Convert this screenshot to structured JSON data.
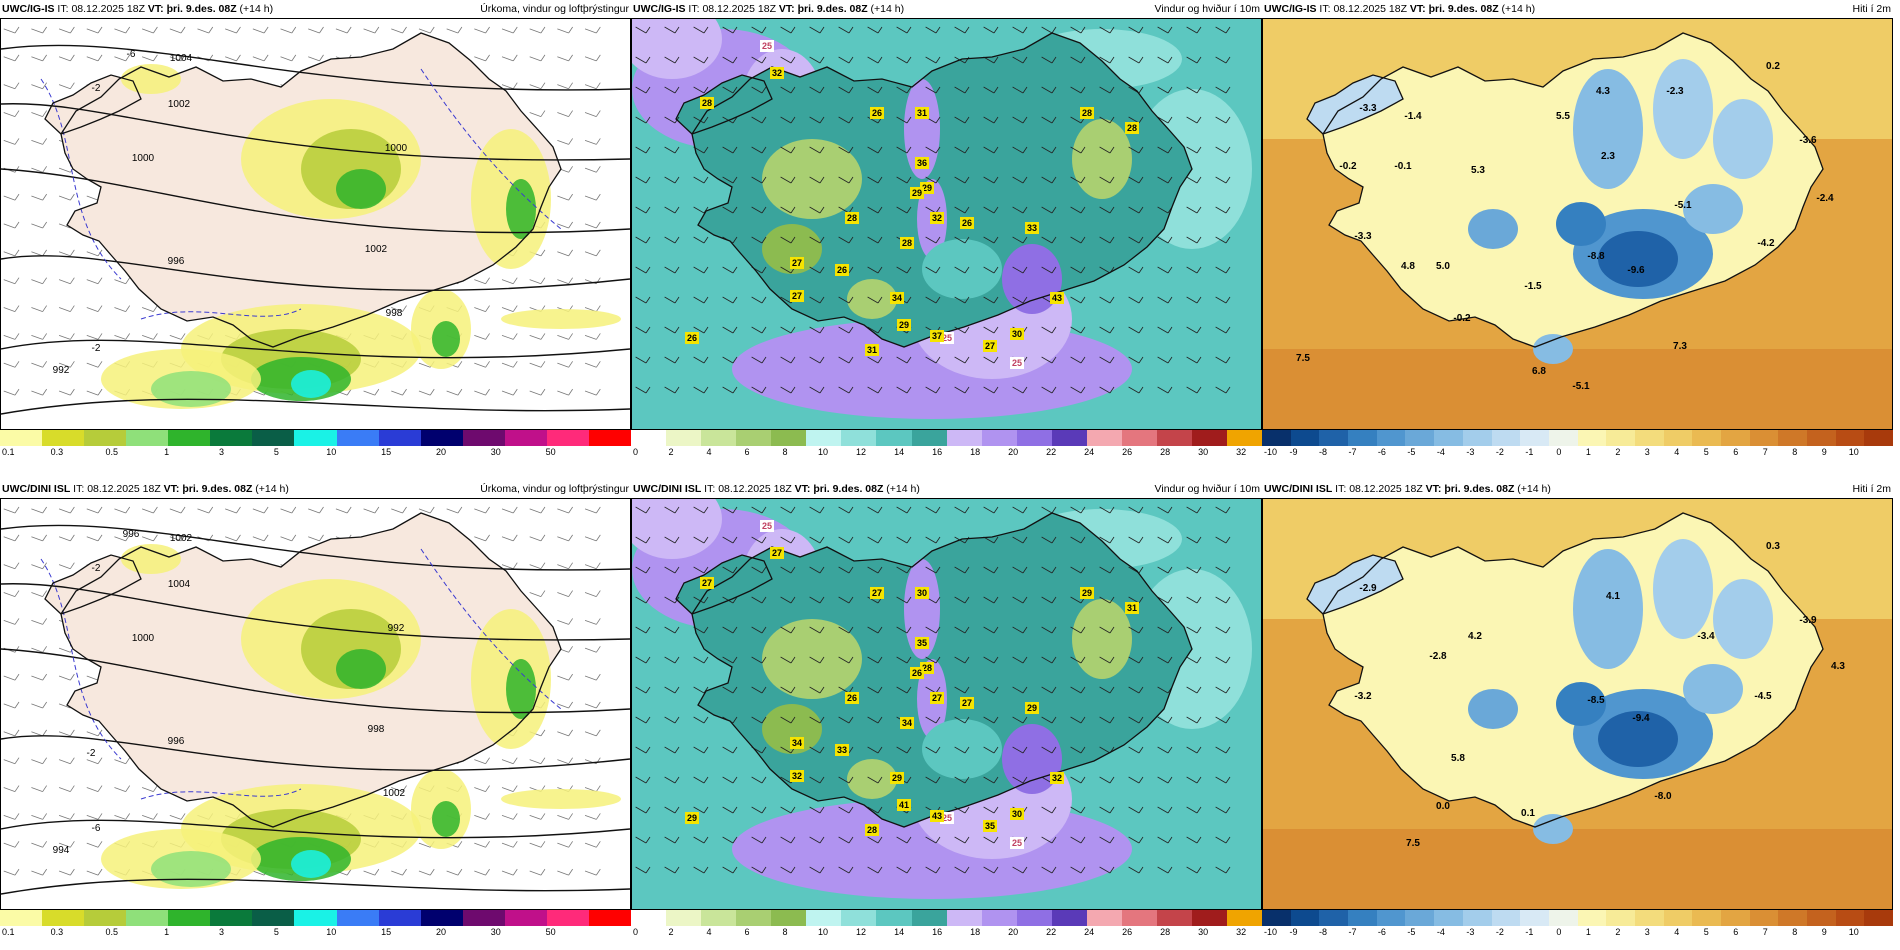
{
  "rows": [
    {
      "model": "UWC/IG-IS",
      "it_label": "IT:",
      "it_value": "08.12.2025 18Z",
      "vt_label": "VT:",
      "vt_value": "þri. 9.des. 08Z",
      "lead": "(+14 h)",
      "panels": [
        {
          "type": "precip",
          "title": "Úrkoma, vindur og loftþrýstingur",
          "labels": [
            "1004",
            "1002",
            "1000",
            "996",
            "992",
            "998",
            "1002",
            "1000",
            "-6",
            "-2",
            "-2"
          ]
        },
        {
          "type": "wind",
          "title": "Vindur og hviður í 10m",
          "labels": [
            "25",
            "32",
            "28",
            "28",
            "26",
            "31",
            "28",
            "28",
            "36",
            "29",
            "26",
            "32",
            "29",
            "33",
            "28",
            "27",
            "26",
            "27",
            "34",
            "25",
            "29",
            "43",
            "37",
            "31",
            "30",
            "27",
            "25",
            "26"
          ]
        },
        {
          "type": "temp",
          "title": "Hiti í 2m",
          "labels": [
            "0.2",
            "-3.3",
            "-1.4",
            "5.5",
            "4.3",
            "-2.3",
            "-0.2",
            "-0.1",
            "5.3",
            "2.3",
            "-3.6",
            "-5.1",
            "-2.4",
            "-3.3",
            "4.8",
            "5.0",
            "-8.8",
            "-4.2",
            "-9.6",
            "-1.5",
            "-0.2",
            "7.5",
            "7.3",
            "6.8",
            "-5.1"
          ]
        }
      ]
    },
    {
      "model": "UWC/DINI ISL",
      "it_label": "IT:",
      "it_value": "08.12.2025 18Z",
      "vt_label": "VT:",
      "vt_value": "þri. 9.des. 08Z",
      "lead": "(+14 h)",
      "panels": [
        {
          "type": "precip",
          "title": "Úrkoma, vindur og loftþrýstingur",
          "labels": [
            "1002",
            "1004",
            "1000",
            "996",
            "994",
            "1002",
            "998",
            "992",
            "996",
            "-6",
            "-2",
            "-2"
          ]
        },
        {
          "type": "wind",
          "title": "Vindur og hviður í 10m",
          "labels": [
            "25",
            "27",
            "27",
            "29",
            "27",
            "30",
            "31",
            "26",
            "35",
            "28",
            "27",
            "27",
            "26",
            "29",
            "34",
            "34",
            "33",
            "32",
            "29",
            "25",
            "41",
            "32",
            "43",
            "28",
            "30",
            "35",
            "25",
            "29"
          ]
        },
        {
          "type": "temp",
          "title": "Hiti í 2m",
          "labels": [
            "0.3",
            "-2.9",
            "4.1",
            "-3.9",
            "-2.8",
            "4.2",
            "-3.4",
            "4.3",
            "-3.2",
            "-8.5",
            "-4.5",
            "5.8",
            "-9.4",
            "0.0",
            "-8.0",
            "0.1",
            "7.5"
          ]
        }
      ]
    }
  ],
  "colorbars": {
    "precip": {
      "labels": [
        "0.1",
        "0.3",
        "0.5",
        "1",
        "3",
        "5",
        "10",
        "15",
        "20",
        "30",
        "50"
      ],
      "colors": [
        "#fbfba6",
        "#d8dc2a",
        "#b6cc3a",
        "#8fe07a",
        "#2fb42c",
        "#0a7a3b",
        "#0a5e47",
        "#1af2e6",
        "#3a7cf6",
        "#2a3cd6",
        "#00006e",
        "#6e0a6e",
        "#c0108a",
        "#ff2a7a",
        "#ff0000"
      ]
    },
    "wind": {
      "labels": [
        "0",
        "2",
        "4",
        "6",
        "8",
        "10",
        "12",
        "14",
        "16",
        "18",
        "20",
        "22",
        "24",
        "26",
        "28",
        "30",
        "32"
      ],
      "colors": [
        "#ffffff",
        "#ecf6c6",
        "#c9e59a",
        "#a9cf72",
        "#8cbb50",
        "#bff4f0",
        "#8fe0da",
        "#5cc7c0",
        "#3aa49c",
        "#cdb8f6",
        "#b093f0",
        "#8f6fe4",
        "#5a3ab8",
        "#f4a8b0",
        "#e4767e",
        "#c4444a",
        "#a01c1c",
        "#f0a400"
      ]
    },
    "temp": {
      "labels": [
        "-10",
        "-9",
        "-8",
        "-7",
        "-6",
        "-5",
        "-4",
        "-3",
        "-2",
        "-1",
        "0",
        "1",
        "2",
        "3",
        "4",
        "5",
        "6",
        "7",
        "8",
        "9",
        "10"
      ],
      "colors": [
        "#08306b",
        "#0d4a8f",
        "#1f62a8",
        "#3580c0",
        "#5096cf",
        "#6aa8d8",
        "#86bce3",
        "#a3cdeb",
        "#bedbf1",
        "#d8e9f5",
        "#eef4ea",
        "#fbf6b4",
        "#f7eb98",
        "#f3dc7c",
        "#efcc66",
        "#eaba52",
        "#e3a542",
        "#da8f34",
        "#cf7828",
        "#c4621e",
        "#b84c14",
        "#a83a0c"
      ]
    }
  }
}
